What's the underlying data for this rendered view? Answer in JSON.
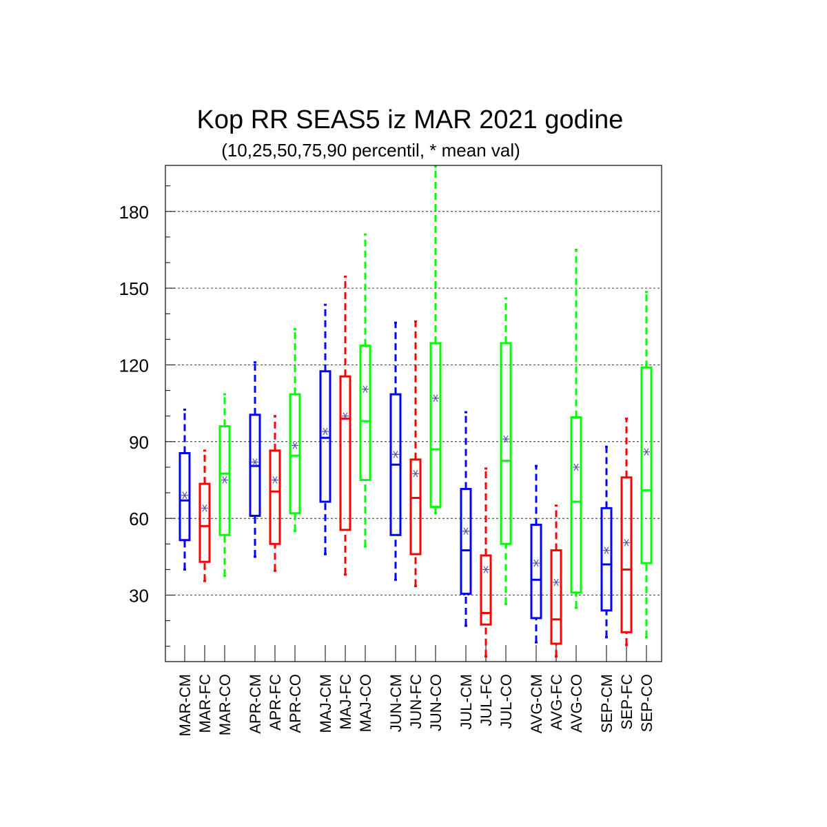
{
  "chart_data": {
    "type": "boxplot",
    "title": "Kop RR SEAS5 iz MAR 2021 godine",
    "subtitle": "(10,25,50,75,90 percentil, * mean val)",
    "xlabel": "",
    "ylabel": "",
    "ylim": [
      4,
      198
    ],
    "yticks": [
      30,
      60,
      90,
      120,
      150,
      180
    ],
    "grid": "horizontal dashed",
    "legend": "none",
    "colors": {
      "CM": "#0000ff",
      "FC": "#ff0000",
      "CO": "#00ff00",
      "mean_marker": "#5555aa"
    },
    "categories": [
      "MAR-CM",
      "MAR-FC",
      "MAR-CO",
      "APR-CM",
      "APR-FC",
      "APR-CO",
      "MAJ-CM",
      "MAJ-FC",
      "MAJ-CO",
      "JUN-CM",
      "JUN-FC",
      "JUN-CO",
      "JUL-CM",
      "JUL-FC",
      "JUL-CO",
      "AVG-CM",
      "AVG-FC",
      "AVG-CO",
      "SEP-CM",
      "SEP-FC",
      "SEP-CO"
    ],
    "boxes": [
      {
        "label": "MAR-CM",
        "group": "CM",
        "p10": 40,
        "p25": 51.5,
        "p50": 67,
        "p75": 85.5,
        "p90": 102.5,
        "mean": 69
      },
      {
        "label": "MAR-FC",
        "group": "FC",
        "p10": 35.5,
        "p25": 43,
        "p50": 57,
        "p75": 73.5,
        "p90": 86.5,
        "mean": 64
      },
      {
        "label": "MAR-CO",
        "group": "CO",
        "p10": 37.5,
        "p25": 53.5,
        "p50": 77.5,
        "p75": 96,
        "p90": 108.5,
        "mean": 75
      },
      {
        "label": "APR-CM",
        "group": "CM",
        "p10": 45,
        "p25": 61,
        "p50": 80.5,
        "p75": 100.5,
        "p90": 121,
        "mean": 82
      },
      {
        "label": "APR-FC",
        "group": "FC",
        "p10": 39.5,
        "p25": 50,
        "p50": 70.5,
        "p75": 86.5,
        "p90": 100,
        "mean": 75
      },
      {
        "label": "APR-CO",
        "group": "CO",
        "p10": 55,
        "p25": 62,
        "p50": 84.5,
        "p75": 108.5,
        "p90": 134,
        "mean": 88.5
      },
      {
        "label": "MAJ-CM",
        "group": "CM",
        "p10": 46,
        "p25": 66.5,
        "p50": 91.5,
        "p75": 117.5,
        "p90": 143.5,
        "mean": 94
      },
      {
        "label": "MAJ-FC",
        "group": "FC",
        "p10": 38,
        "p25": 55.5,
        "p50": 99,
        "p75": 115.5,
        "p90": 154.5,
        "mean": 100
      },
      {
        "label": "MAJ-CO",
        "group": "CO",
        "p10": 49,
        "p25": 75,
        "p50": 98,
        "p75": 127.5,
        "p90": 171,
        "mean": 110.5
      },
      {
        "label": "JUN-CM",
        "group": "CM",
        "p10": 36,
        "p25": 53.5,
        "p50": 81,
        "p75": 108.5,
        "p90": 136.5,
        "mean": 85
      },
      {
        "label": "JUN-FC",
        "group": "FC",
        "p10": 33.5,
        "p25": 46,
        "p50": 68,
        "p75": 83,
        "p90": 137,
        "mean": 77.5
      },
      {
        "label": "JUN-CO",
        "group": "CO",
        "p10": 62,
        "p25": 64.5,
        "p50": 87,
        "p75": 128.5,
        "p90": 197.5,
        "mean": 107
      },
      {
        "label": "JUL-CM",
        "group": "CM",
        "p10": 18,
        "p25": 30.5,
        "p50": 47.5,
        "p75": 71.5,
        "p90": 101.5,
        "mean": 55
      },
      {
        "label": "JUL-FC",
        "group": "FC",
        "p10": 6,
        "p25": 18.5,
        "p50": 23,
        "p75": 45.5,
        "p90": 79.5,
        "mean": 40
      },
      {
        "label": "JUL-CO",
        "group": "CO",
        "p10": 26.5,
        "p25": 50,
        "p50": 82.5,
        "p75": 128.5,
        "p90": 146,
        "mean": 91
      },
      {
        "label": "AVG-CM",
        "group": "CM",
        "p10": 11.5,
        "p25": 21,
        "p50": 36,
        "p75": 57.5,
        "p90": 80.5,
        "mean": 42.5
      },
      {
        "label": "AVG-FC",
        "group": "FC",
        "p10": 6,
        "p25": 11,
        "p50": 20.5,
        "p75": 47.5,
        "p90": 65,
        "mean": 35
      },
      {
        "label": "AVG-CO",
        "group": "CO",
        "p10": 25,
        "p25": 31,
        "p50": 66.5,
        "p75": 99.5,
        "p90": 165,
        "mean": 80
      },
      {
        "label": "SEP-CM",
        "group": "CM",
        "p10": 13.5,
        "p25": 24,
        "p50": 42,
        "p75": 64,
        "p90": 88,
        "mean": 47.5
      },
      {
        "label": "SEP-FC",
        "group": "FC",
        "p10": 10.5,
        "p25": 15.5,
        "p50": 40,
        "p75": 76,
        "p90": 99,
        "mean": 50.5
      },
      {
        "label": "SEP-CO",
        "group": "CO",
        "p10": 13.5,
        "p25": 42.5,
        "p50": 71,
        "p75": 119,
        "p90": 148.5,
        "mean": 86
      }
    ]
  }
}
